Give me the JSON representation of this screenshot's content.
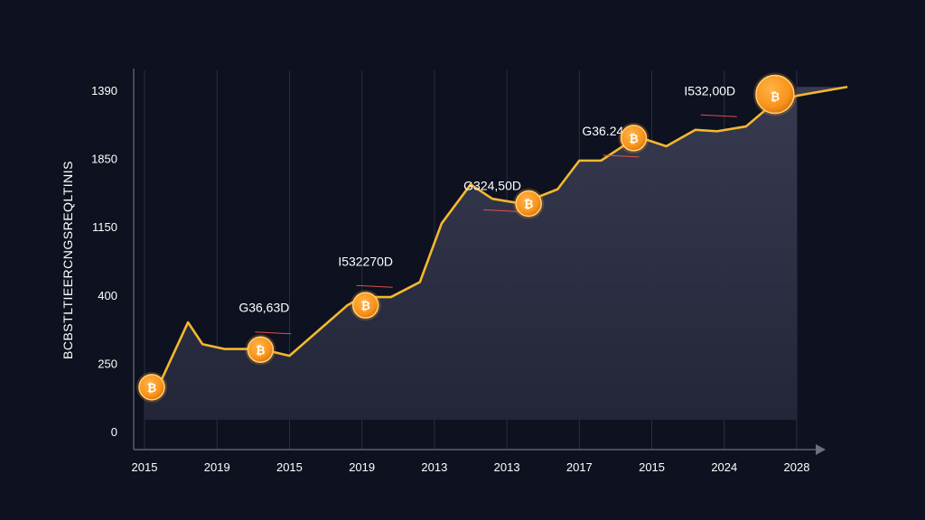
{
  "chart_data": {
    "type": "area",
    "ylabel": "BCBSTLTIEERCNGSREQLTINIS",
    "x_ticks": [
      "2015",
      "2019",
      "2015",
      "2019",
      "2013",
      "2013",
      "2017",
      "2015",
      "2024",
      "2028"
    ],
    "y_ticks": [
      {
        "label": "1390",
        "level": 5
      },
      {
        "label": "1850",
        "level": 4
      },
      {
        "label": "1150",
        "level": 3
      },
      {
        "label": "400",
        "level": 2
      },
      {
        "label": "250",
        "level": 1
      },
      {
        "label": "0",
        "level": 0
      }
    ],
    "ylim": [
      0,
      5
    ],
    "grid": true,
    "line_color": "#f5b82e",
    "coin_color": "#f7931a",
    "series": [
      {
        "x": [
          0.0,
          0.2,
          0.6,
          0.8,
          1.1,
          1.3,
          1.6,
          2.0,
          2.4,
          2.8,
          3.0,
          3.4,
          3.8,
          4.1,
          4.5,
          4.8,
          5.2,
          5.7,
          6.0,
          6.3,
          6.8,
          7.2,
          7.6,
          7.9,
          8.3,
          8.6,
          9.0,
          9.7
        ],
        "y": [
          0.58,
          0.68,
          1.6,
          1.28,
          1.21,
          1.21,
          1.21,
          1.11,
          1.48,
          1.85,
          1.97,
          1.97,
          2.19,
          3.05,
          3.62,
          3.41,
          3.34,
          3.55,
          3.97,
          3.97,
          4.32,
          4.18,
          4.42,
          4.4,
          4.47,
          4.74,
          4.92,
          5.05
        ]
      }
    ],
    "markers": [
      {
        "x": 0.1,
        "y": 0.65
      },
      {
        "x": 1.6,
        "y": 1.2
      },
      {
        "x": 3.05,
        "y": 1.85
      },
      {
        "x": 5.3,
        "y": 3.34
      },
      {
        "x": 6.75,
        "y": 4.3
      },
      {
        "x": 8.7,
        "y": 4.94
      }
    ],
    "annotations": [
      {
        "text": "G36,63D",
        "x": 1.65,
        "y": 1.75
      },
      {
        "text": "I532270D",
        "x": 3.05,
        "y": 2.43
      },
      {
        "text": "G324,50D",
        "x": 4.8,
        "y": 3.54
      },
      {
        "text": "G36.2462)",
        "x": 6.45,
        "y": 4.34
      },
      {
        "text": "I532,00D",
        "x": 7.8,
        "y": 4.93
      }
    ]
  }
}
